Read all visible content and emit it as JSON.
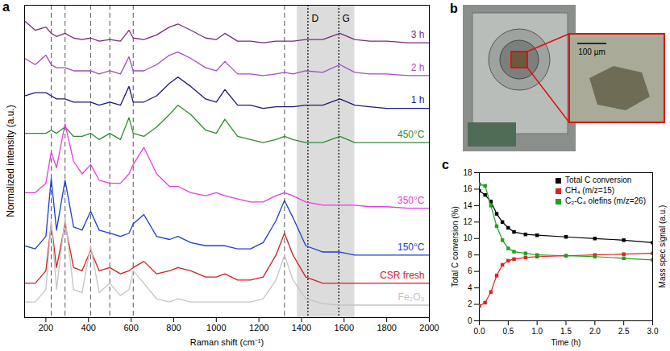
{
  "chart_data": [
    {
      "panel": "a",
      "type": "line",
      "x_label": "Raman shift (cm⁻¹)",
      "y_label": "Normalized intensity (a.u.)",
      "x": [
        100,
        150,
        200,
        225,
        250,
        290,
        330,
        370,
        410,
        450,
        500,
        550,
        590,
        610,
        660,
        720,
        780,
        820,
        880,
        950,
        1000,
        1040,
        1100,
        1160,
        1220,
        1280,
        1320,
        1360,
        1420,
        1500,
        1580,
        1650,
        1720,
        1800,
        1900,
        2000
      ],
      "xlim": [
        100,
        2000
      ],
      "xticks": [
        200,
        400,
        600,
        800,
        1000,
        1200,
        1400,
        1600,
        1800,
        2000
      ],
      "ylim": [
        0,
        10
      ],
      "tick_labels": "x",
      "series": [
        {
          "name": "3 h",
          "color": "#7b2a7b",
          "values": [
            9.5,
            9.2,
            9.3,
            9.1,
            9.0,
            9.1,
            8.95,
            8.9,
            8.95,
            8.85,
            8.9,
            8.85,
            9.2,
            8.95,
            8.9,
            9.05,
            9.3,
            9.4,
            9.2,
            8.95,
            8.9,
            9.1,
            8.85,
            8.85,
            8.8,
            8.85,
            8.85,
            8.85,
            8.9,
            8.9,
            9.1,
            8.9,
            8.85,
            8.85,
            8.8,
            8.8
          ]
        },
        {
          "name": "2 h",
          "color": "#a24bc4",
          "values": [
            8.3,
            8.1,
            8.4,
            8.1,
            8.0,
            8.0,
            7.9,
            7.9,
            7.9,
            7.8,
            7.9,
            7.8,
            8.35,
            7.9,
            7.9,
            8.1,
            8.4,
            8.5,
            8.3,
            8.0,
            7.9,
            8.2,
            7.8,
            7.8,
            7.75,
            7.8,
            7.85,
            7.8,
            7.9,
            7.85,
            8.1,
            7.85,
            7.8,
            7.8,
            7.75,
            7.75
          ]
        },
        {
          "name": "1 h",
          "color": "#1c1c72",
          "values": [
            7.1,
            7.2,
            7.2,
            7.1,
            7.0,
            7.0,
            6.9,
            6.9,
            6.9,
            6.8,
            6.9,
            6.8,
            7.4,
            6.9,
            6.9,
            7.1,
            7.5,
            7.7,
            7.4,
            7.0,
            6.9,
            7.3,
            6.8,
            6.8,
            6.7,
            6.75,
            6.75,
            6.75,
            6.8,
            6.8,
            7.0,
            6.8,
            6.75,
            6.7,
            6.7,
            6.7
          ]
        },
        {
          "name": "450°C",
          "color": "#2e8b2e",
          "values": [
            5.9,
            5.9,
            5.9,
            6.0,
            5.9,
            6.1,
            5.8,
            5.8,
            5.9,
            5.7,
            5.9,
            5.7,
            6.4,
            5.9,
            5.8,
            6.1,
            6.5,
            6.8,
            6.5,
            6.0,
            5.9,
            6.35,
            5.8,
            5.7,
            5.6,
            5.7,
            5.8,
            5.7,
            5.6,
            5.6,
            5.8,
            5.6,
            5.6,
            5.6,
            5.6,
            5.6
          ]
        },
        {
          "name": "350°C",
          "color": "#e03ee0",
          "values": [
            4.0,
            4.0,
            4.3,
            5.3,
            4.8,
            6.2,
            5.0,
            4.6,
            4.9,
            4.4,
            4.3,
            4.3,
            4.6,
            4.9,
            5.45,
            4.6,
            4.2,
            4.2,
            4.0,
            3.9,
            4.0,
            3.9,
            3.8,
            3.7,
            3.7,
            3.9,
            4.0,
            3.9,
            3.7,
            3.6,
            3.6,
            3.6,
            3.55,
            3.55,
            3.5,
            3.5
          ]
        },
        {
          "name": "150°C",
          "color": "#1a3fd0",
          "values": [
            2.3,
            2.2,
            2.6,
            4.45,
            2.8,
            4.4,
            2.9,
            2.8,
            3.4,
            2.8,
            2.7,
            2.6,
            2.7,
            3.0,
            3.3,
            2.6,
            2.5,
            2.6,
            2.4,
            2.3,
            2.3,
            2.3,
            2.2,
            2.2,
            2.4,
            3.1,
            3.75,
            3.2,
            2.3,
            2.1,
            2.1,
            2.0,
            2.0,
            2.0,
            2.0,
            2.0
          ]
        },
        {
          "name": "CSR fresh",
          "color": "#d02020",
          "values": [
            1.1,
            1.1,
            1.5,
            3.0,
            1.6,
            3.0,
            1.6,
            1.5,
            2.15,
            1.5,
            1.6,
            1.4,
            1.5,
            1.6,
            1.8,
            1.4,
            1.5,
            1.6,
            1.5,
            1.3,
            1.3,
            1.4,
            1.2,
            1.2,
            1.3,
            2.0,
            2.7,
            2.0,
            1.3,
            1.1,
            1.1,
            1.1,
            1.1,
            1.1,
            1.1,
            1.1
          ]
        },
        {
          "name": "Fe₂O₃",
          "color": "#c4c4c4",
          "values": [
            0.5,
            0.5,
            0.9,
            3.1,
            0.9,
            3.2,
            0.9,
            0.8,
            2.3,
            0.8,
            1.1,
            0.7,
            0.9,
            1.5,
            1.1,
            0.6,
            0.5,
            0.6,
            0.5,
            0.5,
            0.5,
            0.5,
            0.5,
            0.5,
            0.6,
            1.2,
            2.0,
            1.2,
            0.6,
            0.45,
            0.4,
            0.4,
            0.4,
            0.4,
            0.4,
            0.4
          ]
        }
      ],
      "reference_lines": [
        225,
        290,
        410,
        500,
        610,
        1320
      ],
      "band_lines": [
        {
          "label": "D",
          "value": 1430
        },
        {
          "label": "G",
          "value": 1575
        }
      ],
      "shaded_region": [
        1380,
        1650
      ]
    },
    {
      "panel": "c",
      "type": "line",
      "x_label": "Time (h)",
      "y_label": "Total C conversion (%)",
      "y2_label": "Mass spec signal (a.u.)",
      "x": [
        0,
        0.1,
        0.2,
        0.3,
        0.4,
        0.5,
        0.6,
        0.8,
        1.0,
        1.5,
        2.0,
        2.5,
        3.0
      ],
      "xlim": [
        0,
        3
      ],
      "xticks": [
        {
          "value": 0,
          "label": "0.0"
        },
        {
          "value": 0.5,
          "label": "0.5"
        },
        {
          "value": 1,
          "label": "1.0"
        },
        {
          "value": 1.5,
          "label": "1.5"
        },
        {
          "value": 2,
          "label": "2.0"
        },
        {
          "value": 2.5,
          "label": "2.5"
        },
        {
          "value": 3,
          "label": "3.0"
        }
      ],
      "ylim": [
        0,
        18
      ],
      "yticks": [
        0,
        2,
        4,
        6,
        8,
        10,
        12,
        14,
        16,
        18
      ],
      "y2lim": [
        0,
        18
      ],
      "legend": "top-right",
      "series": [
        {
          "name": "Total C conversion",
          "color": "#000000",
          "marker": "square",
          "values": [
            15.8,
            15.3,
            14.5,
            13.0,
            12.0,
            11.3,
            10.8,
            10.5,
            10.4,
            10.2,
            10.0,
            9.8,
            9.5
          ]
        },
        {
          "name": "CH₄ (m/z=15)",
          "color": "#e02020",
          "marker": "square",
          "axis": "y2",
          "values": [
            1.8,
            2.2,
            3.5,
            5.5,
            6.8,
            7.3,
            7.5,
            7.7,
            7.8,
            7.9,
            8.0,
            8.1,
            8.2
          ]
        },
        {
          "name": "C₂-C₄ olefins (m/z=26)",
          "color": "#1fa01f",
          "marker": "square",
          "axis": "y2",
          "values": [
            16.6,
            16.4,
            14.0,
            11.5,
            9.8,
            8.8,
            8.4,
            8.2,
            8.0,
            7.9,
            7.8,
            7.6,
            7.4
          ]
        }
      ]
    }
  ],
  "photo": {
    "panel": "b",
    "scale_bar": "100 µm"
  }
}
